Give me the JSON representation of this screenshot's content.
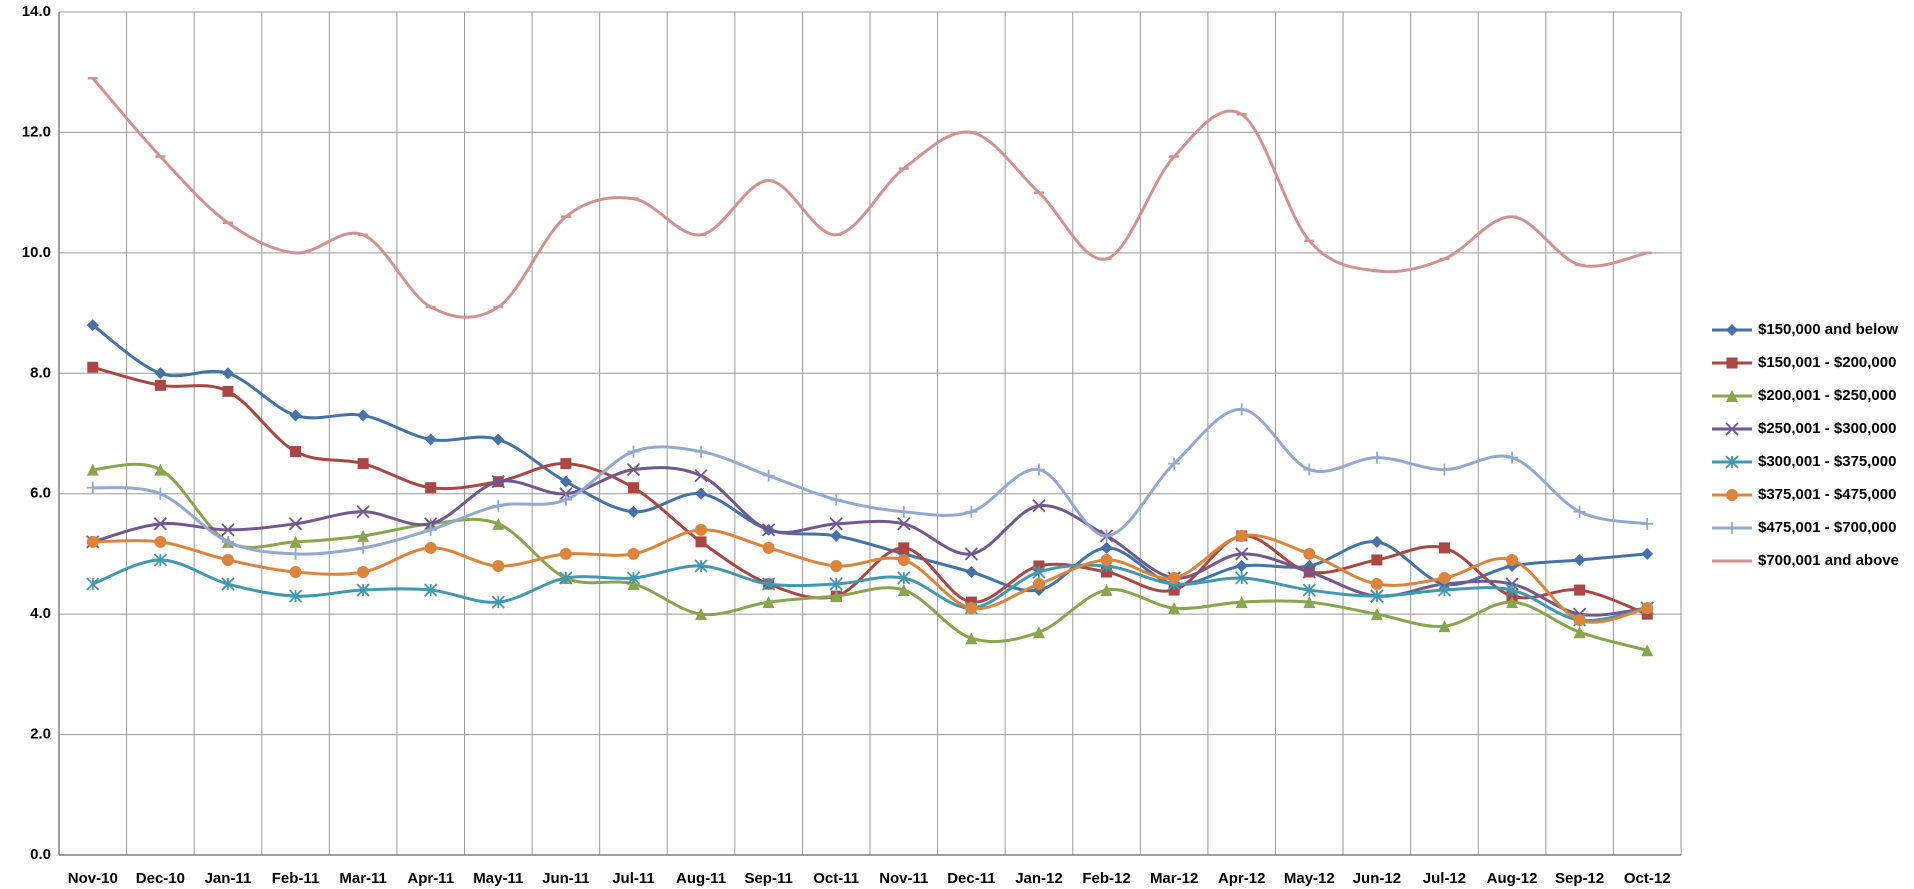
{
  "chart_data": {
    "type": "line",
    "categories": [
      "Nov-10",
      "Dec-10",
      "Jan-11",
      "Feb-11",
      "Mar-11",
      "Apr-11",
      "May-11",
      "Jun-11",
      "Jul-11",
      "Aug-11",
      "Sep-11",
      "Oct-11",
      "Nov-11",
      "Dec-11",
      "Jan-12",
      "Feb-12",
      "Mar-12",
      "Apr-12",
      "May-12",
      "Jun-12",
      "Jul-12",
      "Aug-12",
      "Sep-12",
      "Oct-12"
    ],
    "ylim": [
      0,
      14
    ],
    "yticks": [
      {
        "value": 0,
        "label": "0.0"
      },
      {
        "value": 2,
        "label": "2.0"
      },
      {
        "value": 4,
        "label": "4.0"
      },
      {
        "value": 6,
        "label": "6.0"
      },
      {
        "value": 8,
        "label": "8.0"
      },
      {
        "value": 10,
        "label": "10.0"
      },
      {
        "value": 12,
        "label": "12.0"
      },
      {
        "value": 14,
        "label": "14.0"
      }
    ],
    "grid": true,
    "legend": "right",
    "smooth": true,
    "series": [
      {
        "name": "$150,000 and below",
        "color": "#4572a7",
        "marker": "diamond",
        "values": [
          8.8,
          8.0,
          8.0,
          7.3,
          7.3,
          6.9,
          6.9,
          6.2,
          5.7,
          6.0,
          5.4,
          5.3,
          5.0,
          4.7,
          4.4,
          5.1,
          4.5,
          4.8,
          4.8,
          5.2,
          4.5,
          4.8,
          4.9,
          5.0
        ]
      },
      {
        "name": "$150,001 - $200,000",
        "color": "#aa4643",
        "marker": "square",
        "values": [
          8.1,
          7.8,
          7.7,
          6.7,
          6.5,
          6.1,
          6.2,
          6.5,
          6.1,
          5.2,
          4.5,
          4.3,
          5.1,
          4.2,
          4.8,
          4.7,
          4.4,
          5.3,
          4.7,
          4.9,
          5.1,
          4.3,
          4.4,
          4.0
        ]
      },
      {
        "name": "$200,001 - $250,000",
        "color": "#89a54e",
        "marker": "triangle",
        "values": [
          6.4,
          6.4,
          5.2,
          5.2,
          5.3,
          5.5,
          5.5,
          4.6,
          4.5,
          4.0,
          4.2,
          4.3,
          4.4,
          3.6,
          3.7,
          4.4,
          4.1,
          4.2,
          4.2,
          4.0,
          3.8,
          4.2,
          3.7,
          3.4
        ]
      },
      {
        "name": "$250,001 - $300,000",
        "color": "#71588f",
        "marker": "x",
        "values": [
          5.2,
          5.5,
          5.4,
          5.5,
          5.7,
          5.5,
          6.2,
          6.0,
          6.4,
          6.3,
          5.4,
          5.5,
          5.5,
          5.0,
          5.8,
          5.3,
          4.6,
          5.0,
          4.7,
          4.3,
          4.5,
          4.5,
          4.0,
          4.1
        ]
      },
      {
        "name": "$300,001 - $375,000",
        "color": "#4198af",
        "marker": "star",
        "values": [
          4.5,
          4.9,
          4.5,
          4.3,
          4.4,
          4.4,
          4.2,
          4.6,
          4.6,
          4.8,
          4.5,
          4.5,
          4.6,
          4.1,
          4.7,
          4.8,
          4.5,
          4.6,
          4.4,
          4.3,
          4.4,
          4.4,
          3.9,
          4.1
        ]
      },
      {
        "name": "$375,001 - $475,000",
        "color": "#db843d",
        "marker": "circle",
        "values": [
          5.2,
          5.2,
          4.9,
          4.7,
          4.7,
          5.1,
          4.8,
          5.0,
          5.0,
          5.4,
          5.1,
          4.8,
          4.9,
          4.1,
          4.5,
          4.9,
          4.6,
          5.3,
          5.0,
          4.5,
          4.6,
          4.9,
          3.9,
          4.1
        ]
      },
      {
        "name": "$475,001 - $700,000",
        "color": "#93a9cf",
        "marker": "plus",
        "values": [
          6.1,
          6.0,
          5.2,
          5.0,
          5.1,
          5.4,
          5.8,
          5.9,
          6.7,
          6.7,
          6.3,
          5.9,
          5.7,
          5.7,
          6.4,
          5.3,
          6.5,
          7.4,
          6.4,
          6.6,
          6.4,
          6.6,
          5.7,
          5.5
        ]
      },
      {
        "name": "$700,001 and above",
        "color": "#d19392",
        "marker": "dash",
        "values": [
          12.9,
          11.6,
          10.5,
          10.0,
          10.3,
          9.1,
          9.1,
          10.6,
          10.9,
          10.3,
          11.2,
          10.3,
          11.4,
          12.0,
          11.0,
          9.9,
          11.6,
          12.3,
          10.2,
          9.7,
          9.9,
          10.6,
          9.8,
          10.0
        ]
      }
    ]
  }
}
